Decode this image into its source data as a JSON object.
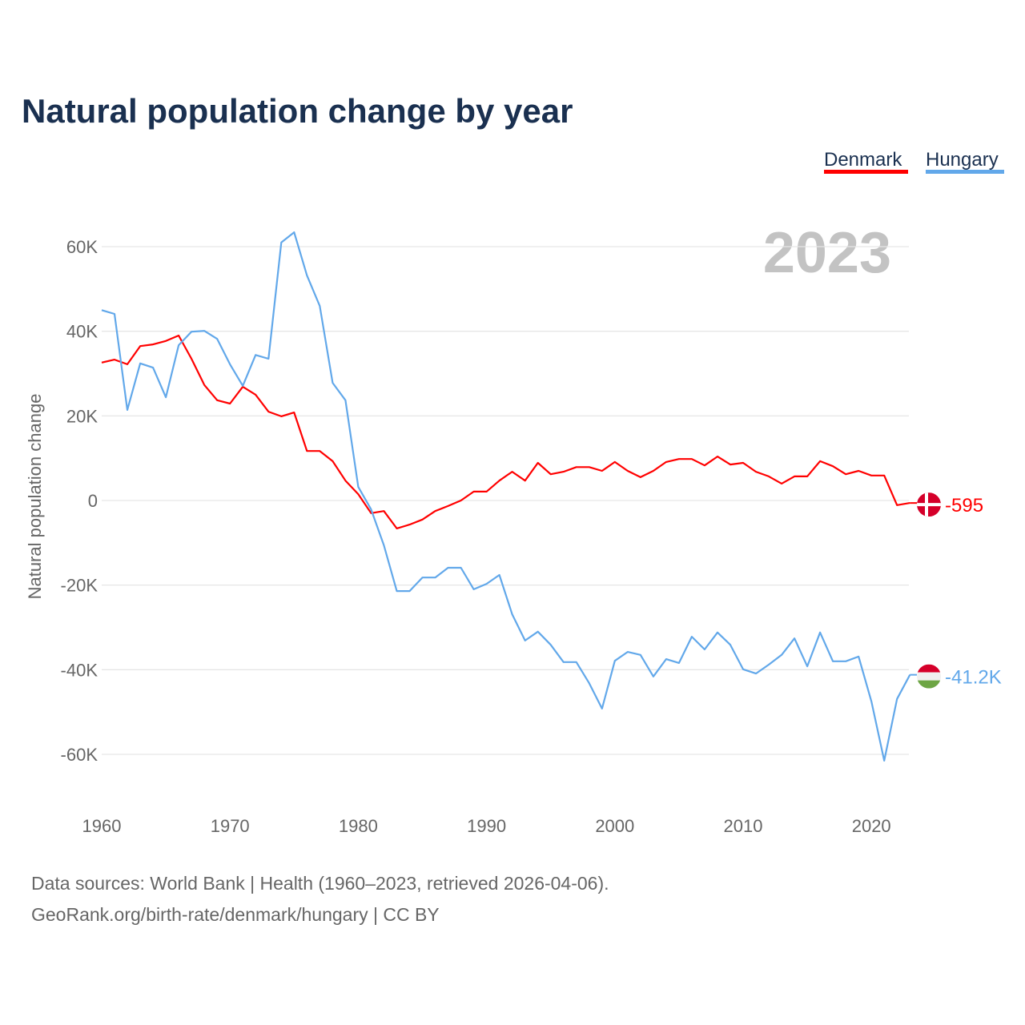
{
  "chart_data": {
    "type": "line",
    "title": "Natural population change by year",
    "xlabel": "",
    "ylabel": "Natural population change",
    "year_label": "2023",
    "xlim": [
      1960,
      2023
    ],
    "ylim": [
      -70000,
      65000
    ],
    "grid": true,
    "legend_placement": "top-right",
    "x_ticks": [
      1960,
      1970,
      1980,
      1990,
      2000,
      2010,
      2020
    ],
    "x_tick_labels": [
      "1960",
      "1970",
      "1980",
      "1990",
      "2000",
      "2010",
      "2020"
    ],
    "y_ticks": [
      60000,
      40000,
      20000,
      0,
      -20000,
      -40000,
      -60000
    ],
    "y_tick_labels": [
      "60K",
      "40K",
      "20K",
      "0",
      "-20K",
      "-40K",
      "-60K"
    ],
    "x_start": 1960,
    "series": [
      {
        "name": "Denmark",
        "color": "#ff0000",
        "flag": "denmark-flag",
        "end_label": "-595",
        "values": [
          32600,
          33300,
          32200,
          36500,
          36900,
          37700,
          39000,
          33500,
          27300,
          23700,
          22900,
          26900,
          25000,
          21000,
          19900,
          20800,
          11700,
          11700,
          9300,
          4700,
          1500,
          -3000,
          -2500,
          -6600,
          -5700,
          -4500,
          -2500,
          -1300,
          0,
          2100,
          2100,
          4700,
          6800,
          4700,
          8900,
          6200,
          6800,
          7900,
          7900,
          7000,
          9100,
          7000,
          5500,
          7000,
          9100,
          9800,
          9800,
          8300,
          10400,
          8500,
          8900,
          6800,
          5700,
          4000,
          5700,
          5700,
          9300,
          8100,
          6200,
          7000,
          5900,
          5900,
          -1100,
          -595
        ]
      },
      {
        "name": "Hungary",
        "color": "#62a8ea",
        "flag": "hungary-flag",
        "end_label": "-41.2K",
        "values": [
          45000,
          44100,
          21400,
          32400,
          31400,
          24400,
          36700,
          39900,
          40100,
          38200,
          32200,
          27100,
          34400,
          33500,
          61000,
          63400,
          53200,
          46000,
          27800,
          23700,
          3200,
          -2100,
          -10600,
          -21400,
          -21400,
          -18200,
          -18200,
          -15900,
          -15900,
          -21000,
          -19700,
          -17600,
          -26900,
          -33100,
          -31000,
          -34100,
          -38200,
          -38200,
          -43200,
          -49200,
          -37900,
          -35800,
          -36500,
          -41600,
          -37500,
          -38400,
          -32200,
          -35200,
          -31200,
          -34100,
          -39900,
          -40900,
          -38800,
          -36500,
          -32600,
          -39200,
          -31200,
          -38000,
          -38000,
          -36900,
          -47500,
          -61500,
          -46900,
          -41200
        ]
      }
    ]
  },
  "footer": {
    "line1": "Data sources: World Bank | Health (1960–2023, retrieved 2026-04-06).",
    "line2": "GeoRank.org/birth-rate/denmark/hungary | CC BY"
  }
}
